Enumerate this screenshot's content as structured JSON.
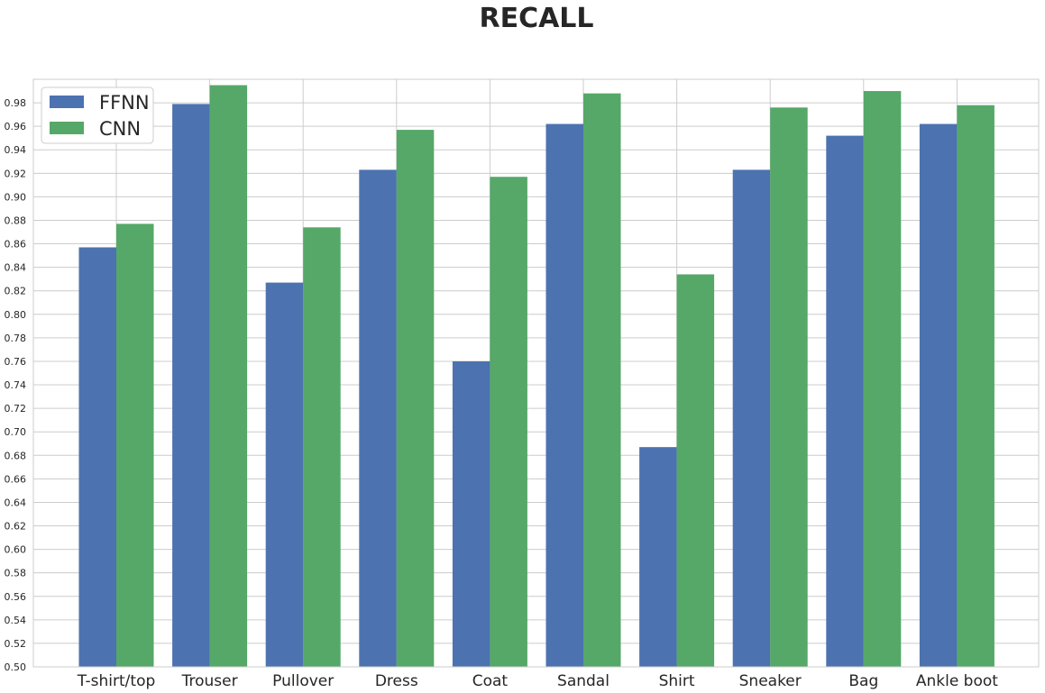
{
  "chart_data": {
    "type": "bar",
    "title": "RECALL",
    "xlabel": "",
    "ylabel": "",
    "ylim": [
      0.5,
      1.0
    ],
    "yticks": [
      "0.50",
      "0.52",
      "0.54",
      "0.56",
      "0.58",
      "0.60",
      "0.62",
      "0.64",
      "0.66",
      "0.68",
      "0.70",
      "0.72",
      "0.74",
      "0.76",
      "0.78",
      "0.80",
      "0.82",
      "0.84",
      "0.86",
      "0.88",
      "0.90",
      "0.92",
      "0.94",
      "0.96",
      "0.98"
    ],
    "grid": true,
    "legend_position": "top-left",
    "categories": [
      "T-shirt/top",
      "Trouser",
      "Pullover",
      "Dress",
      "Coat",
      "Sandal",
      "Shirt",
      "Sneaker",
      "Bag",
      "Ankle boot"
    ],
    "series": [
      {
        "name": "FFNN",
        "color": "#4c72b0",
        "values": [
          0.857,
          0.979,
          0.827,
          0.923,
          0.76,
          0.962,
          0.687,
          0.923,
          0.952,
          0.962
        ]
      },
      {
        "name": "CNN",
        "color": "#55a868",
        "values": [
          0.877,
          0.995,
          0.874,
          0.957,
          0.917,
          0.988,
          0.834,
          0.976,
          0.99,
          0.978
        ]
      }
    ]
  }
}
